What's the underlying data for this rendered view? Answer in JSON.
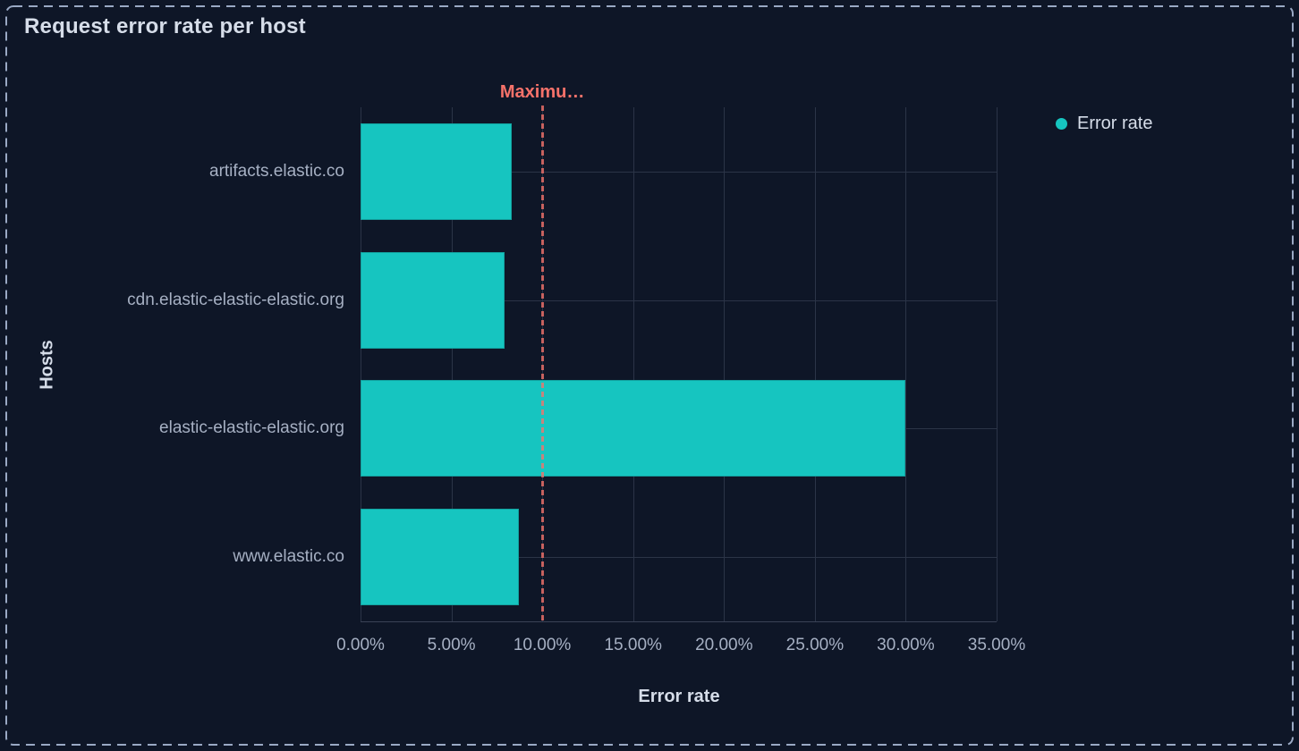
{
  "panel": {
    "title": "Request error rate per host"
  },
  "legend": {
    "items": [
      {
        "label": "Error rate",
        "color": "#16c5c0"
      }
    ]
  },
  "chart_data": {
    "type": "bar",
    "orientation": "horizontal",
    "title": "Request error rate per host",
    "categories": [
      "artifacts.elastic.co",
      "cdn.elastic-elastic-elastic.org",
      "elastic-elastic-elastic.org",
      "www.elastic.co"
    ],
    "series": [
      {
        "name": "Error rate",
        "values": [
          8.3,
          7.9,
          30,
          8.7
        ],
        "color": "#16c5c0"
      }
    ],
    "xlabel": "Error rate",
    "ylabel": "Hosts",
    "xlim": [
      0,
      35
    ],
    "x_tick_step": 5,
    "x_tick_labels": [
      "0.00%",
      "5.00%",
      "10.00%",
      "15.00%",
      "20.00%",
      "25.00%",
      "30.00%",
      "35.00%"
    ],
    "grid": true,
    "legend_position": "top-right",
    "annotations": [
      {
        "type": "vline",
        "x": 10,
        "label": "Maximu…",
        "style": "dashed",
        "color": "#f6726a"
      }
    ]
  },
  "colors": {
    "background": "#0e1627",
    "panel_border": "#9aa9c4",
    "gridline": "#2b3447",
    "axis_line": "#3a4257",
    "bar": "#16c5c0",
    "text_primary": "#d6dde9",
    "text_subdued": "#a6b0c3",
    "annotation": "#f6726a"
  }
}
